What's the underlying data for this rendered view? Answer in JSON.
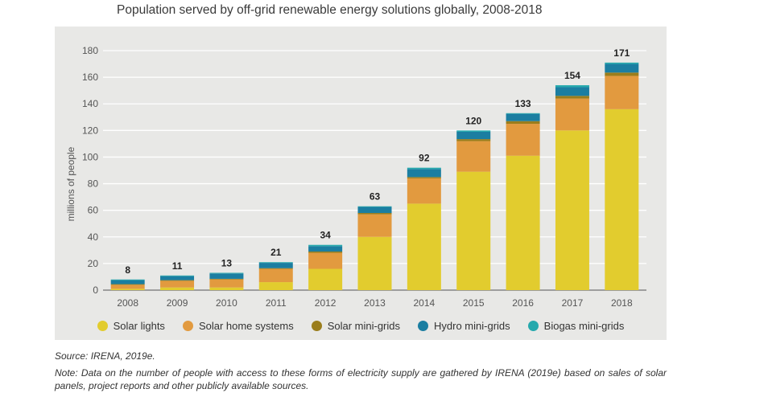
{
  "title": "Population served by off-grid renewable energy solutions globally, 2008-2018",
  "source": "Source: IRENA, 2019e.",
  "note": "Note: Data on the number of people with access to these forms of electricity supply are gathered by IRENA (2019e) based on sales of solar panels, project reports and other publicly available sources.",
  "chart_data": {
    "type": "bar",
    "stacked": true,
    "title": "Population served by off-grid renewable energy solutions globally, 2008-2018",
    "xlabel": "",
    "ylabel": "millions of people",
    "ylim": [
      0,
      180
    ],
    "yticks": [
      0,
      20,
      40,
      60,
      80,
      100,
      120,
      140,
      160,
      180
    ],
    "grid": true,
    "legend_position": "bottom",
    "categories": [
      "2008",
      "2009",
      "2010",
      "2011",
      "2012",
      "2013",
      "2014",
      "2015",
      "2016",
      "2017",
      "2018"
    ],
    "totals": [
      8,
      11,
      13,
      21,
      34,
      63,
      92,
      120,
      133,
      154,
      171
    ],
    "series": [
      {
        "name": "Solar lights",
        "color": "#e2cc2e",
        "values": [
          1,
          2,
          2,
          6,
          16,
          40,
          65,
          89,
          101,
          120,
          136
        ]
      },
      {
        "name": "Solar home systems",
        "color": "#e29a3f",
        "values": [
          3,
          5,
          6,
          10,
          12,
          17,
          19,
          23,
          24,
          24,
          25
        ]
      },
      {
        "name": "Solar mini-grids",
        "color": "#9a7d1c",
        "values": [
          0.5,
          0.5,
          0.5,
          0.5,
          1,
          1,
          1,
          1.5,
          2,
          2,
          2.5
        ]
      },
      {
        "name": "Hydro mini-grids",
        "color": "#1b7ea1",
        "values": [
          3,
          3,
          4,
          4,
          4,
          4.5,
          6,
          5.5,
          5.5,
          6.5,
          6.5
        ]
      },
      {
        "name": "Biogas mini-grids",
        "color": "#26a9ad",
        "values": [
          0.5,
          0.5,
          0.5,
          0.5,
          1,
          0.5,
          1,
          1,
          0.5,
          1.5,
          1
        ]
      }
    ]
  }
}
